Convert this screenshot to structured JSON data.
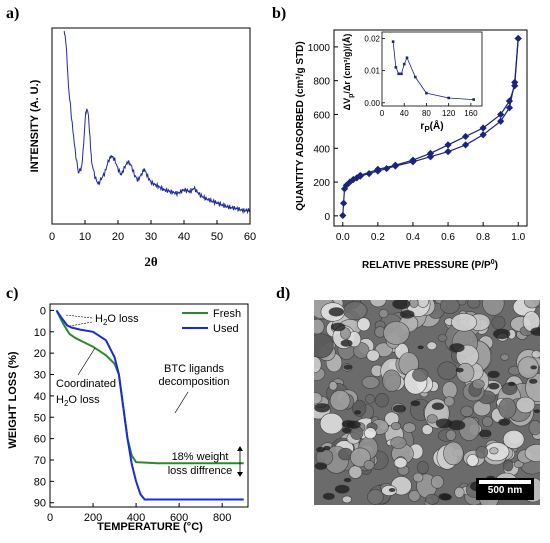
{
  "panel_labels": {
    "a": "a)",
    "b": "b)",
    "c": "c)",
    "d": "d)"
  },
  "sem": {
    "scale_bar": "500 nm"
  },
  "chart_data": [
    {
      "panel": "a)",
      "type": "line",
      "xlabel": "2θ",
      "ylabel": "INTENSITY (A. U.)",
      "xlim": [
        0,
        60
      ],
      "xticks": [
        "0",
        "10",
        "20",
        "30",
        "40",
        "50",
        "60"
      ],
      "color": "#1f2aa0",
      "series": [
        {
          "x": [
            3.7,
            4.3,
            5,
            6,
            7,
            8,
            9,
            9.7,
            10.2,
            10.8,
            11.3,
            12,
            13,
            14,
            15,
            16,
            17,
            18,
            19,
            20,
            21,
            22,
            23,
            24,
            25,
            26,
            27,
            28,
            29,
            30,
            32,
            34,
            36,
            38,
            40,
            42,
            43,
            45,
            47,
            50,
            53,
            56,
            58,
            60
          ],
          "y": [
            1.0,
            0.92,
            0.7,
            0.52,
            0.36,
            0.24,
            0.27,
            0.42,
            0.56,
            0.58,
            0.48,
            0.3,
            0.22,
            0.18,
            0.21,
            0.24,
            0.3,
            0.33,
            0.31,
            0.26,
            0.23,
            0.27,
            0.3,
            0.28,
            0.23,
            0.2,
            0.23,
            0.26,
            0.22,
            0.19,
            0.17,
            0.15,
            0.14,
            0.13,
            0.15,
            0.14,
            0.16,
            0.12,
            0.1,
            0.08,
            0.06,
            0.05,
            0.04,
            0.04
          ]
        }
      ]
    },
    {
      "panel": "b)",
      "type": "line",
      "xlabel": "RELATIVE PRESSURE (P/P",
      "xlabel_sup": "0",
      "xlabel_tail": ")",
      "ylabel": "QUANTITY ADSORBED (cm³/g STD)",
      "xlim": [
        -0.05,
        1.05
      ],
      "ylim": [
        -60,
        1100
      ],
      "xticks": [
        "0.0",
        "0.2",
        "0.4",
        "0.6",
        "0.8",
        "1.0"
      ],
      "yticks": [
        "0",
        "200",
        "400",
        "600",
        "800",
        "1000"
      ],
      "color": "#1a237e",
      "series": [
        {
          "x": [
            0,
            0.005,
            0.01,
            0.02,
            0.04,
            0.06,
            0.08,
            0.1,
            0.15,
            0.2,
            0.25,
            0.3,
            0.4,
            0.5,
            0.6,
            0.7,
            0.8,
            0.9,
            0.95,
            0.98,
            1.0
          ],
          "y": [
            2,
            75,
            160,
            180,
            200,
            215,
            225,
            235,
            250,
            265,
            280,
            295,
            320,
            350,
            380,
            420,
            480,
            560,
            640,
            790,
            1050
          ]
        },
        {
          "x": [
            1.0,
            0.98,
            0.95,
            0.9,
            0.8,
            0.7,
            0.6,
            0.5,
            0.4,
            0.3,
            0.2,
            0.1
          ],
          "y": [
            1050,
            770,
            680,
            600,
            520,
            470,
            420,
            370,
            330,
            300,
            275,
            240
          ]
        }
      ],
      "inset": {
        "xlabel": "r",
        "xlabel_sub": "P",
        "xlabel_unit": "(Å)",
        "ylabel": "ΔV",
        "ylabel_sub": "p",
        "ylabel_tail": "/Δr (cm³/g)/(Å)",
        "xlim": [
          0,
          180
        ],
        "ylim": [
          -0.001,
          0.022
        ],
        "xticks": [
          "0",
          "40",
          "80",
          "120",
          "160"
        ],
        "yticks": [
          "0.00",
          "0.01",
          "0.02"
        ],
        "x": [
          20,
          25,
          30,
          35,
          40,
          45,
          60,
          80,
          120,
          165
        ],
        "y": [
          0.019,
          0.011,
          0.009,
          0.009,
          0.012,
          0.014,
          0.008,
          0.003,
          0.0015,
          0.001
        ]
      }
    },
    {
      "panel": "c)",
      "type": "line",
      "xlabel": "TEMPERATURE (°C)",
      "ylabel": "WEIGHT LOSS (%)",
      "xlim": [
        0,
        920
      ],
      "ylim": [
        -3,
        92
      ],
      "y_inverted": true,
      "xticks": [
        "0",
        "200",
        "400",
        "600",
        "800"
      ],
      "yticks": [
        "0",
        "10",
        "20",
        "30",
        "40",
        "50",
        "60",
        "70",
        "80",
        "90"
      ],
      "legend": {
        "position": "top-right",
        "fresh": "Fresh",
        "used": "Used"
      },
      "series": [
        {
          "color": "#2a8a2a",
          "x": [
            30,
            60,
            90,
            120,
            160,
            200,
            260,
            300,
            320,
            340,
            360,
            380,
            400,
            500,
            600,
            700,
            800,
            900
          ],
          "y": [
            0,
            6,
            11,
            13,
            15,
            17,
            21,
            25,
            30,
            45,
            60,
            68,
            71,
            71.5,
            71.5,
            71.5,
            71.5,
            71.5
          ]
        },
        {
          "color": "#1a2bd8",
          "x": [
            30,
            50,
            80,
            100,
            140,
            200,
            260,
            300,
            320,
            340,
            360,
            380,
            400,
            420,
            440,
            500,
            600,
            700,
            800,
            900
          ],
          "y": [
            0,
            3,
            7,
            8,
            9,
            10,
            14,
            22,
            30,
            45,
            60,
            72,
            80,
            86,
            88.5,
            88.5,
            88.5,
            88.5,
            88.5,
            88.5
          ]
        }
      ],
      "annotations": {
        "h2o_pre": "H",
        "h2o_sub": "2",
        "h2o_post": "O loss",
        "coord_line1": "Coordinated",
        "coord_line2_pre": "H",
        "coord_line2_sub": "2",
        "coord_line2_post": "O loss",
        "btc_line1": "BTC ligands",
        "btc_line2": "decomposition",
        "diff_line1": "18% weight",
        "diff_line2": "loss diffrence"
      }
    }
  ]
}
